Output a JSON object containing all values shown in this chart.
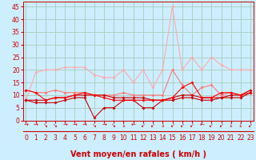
{
  "xlabel": "Vent moyen/en rafales ( km/h )",
  "bg_color": "#cceeff",
  "grid_color": "#aaccbb",
  "x_ticks": [
    0,
    1,
    2,
    3,
    4,
    5,
    6,
    7,
    8,
    9,
    10,
    11,
    12,
    13,
    14,
    15,
    16,
    17,
    18,
    19,
    20,
    21,
    22,
    23
  ],
  "y_ticks": [
    0,
    5,
    10,
    15,
    20,
    25,
    30,
    35,
    40,
    45
  ],
  "ylim": [
    0,
    47
  ],
  "xlim": [
    -0.3,
    23.3
  ],
  "line_light_pink": {
    "color": "#ffaaaa",
    "data": [
      8,
      19,
      20,
      20,
      21,
      21,
      21,
      18,
      17,
      17,
      20,
      15,
      20,
      13,
      20,
      45,
      20,
      25,
      20,
      25,
      22,
      20,
      20,
      20
    ]
  },
  "line_pink": {
    "color": "#ff7777",
    "data": [
      12,
      11,
      11,
      12,
      11,
      11,
      11,
      10,
      10,
      10,
      11,
      10,
      10,
      10,
      10,
      20,
      14,
      10,
      13,
      14,
      10,
      11,
      10,
      12
    ]
  },
  "line_red1": {
    "color": "#cc0000",
    "data": [
      8,
      7,
      7,
      7,
      8,
      9,
      9,
      1,
      5,
      5,
      8,
      8,
      5,
      5,
      8,
      8,
      9,
      9,
      8,
      8,
      9,
      10,
      10,
      12
    ]
  },
  "line_red2": {
    "color": "#cc0000",
    "data": [
      8,
      8,
      8,
      9,
      9,
      10,
      10,
      10,
      10,
      9,
      9,
      9,
      9,
      8,
      8,
      9,
      10,
      10,
      9,
      9,
      9,
      9,
      9,
      11
    ]
  },
  "line_red3": {
    "color": "#ff0000",
    "data": [
      12,
      11,
      8,
      9,
      9,
      10,
      11,
      10,
      9,
      8,
      8,
      8,
      8,
      8,
      8,
      9,
      13,
      15,
      9,
      9,
      11,
      11,
      10,
      11
    ]
  },
  "wind_arrows": [
    "→",
    "→",
    "↘",
    "↘",
    "→",
    "→",
    "→",
    "↘",
    "→",
    "↘",
    "↓",
    "←",
    "↙",
    "↙",
    "↓",
    "↙",
    "↙",
    "↙",
    "←",
    "↙",
    "↙",
    "↓",
    "↓",
    "↙"
  ],
  "red_color": "#cc0000",
  "tick_fontsize": 5.5,
  "label_fontsize": 7.0
}
